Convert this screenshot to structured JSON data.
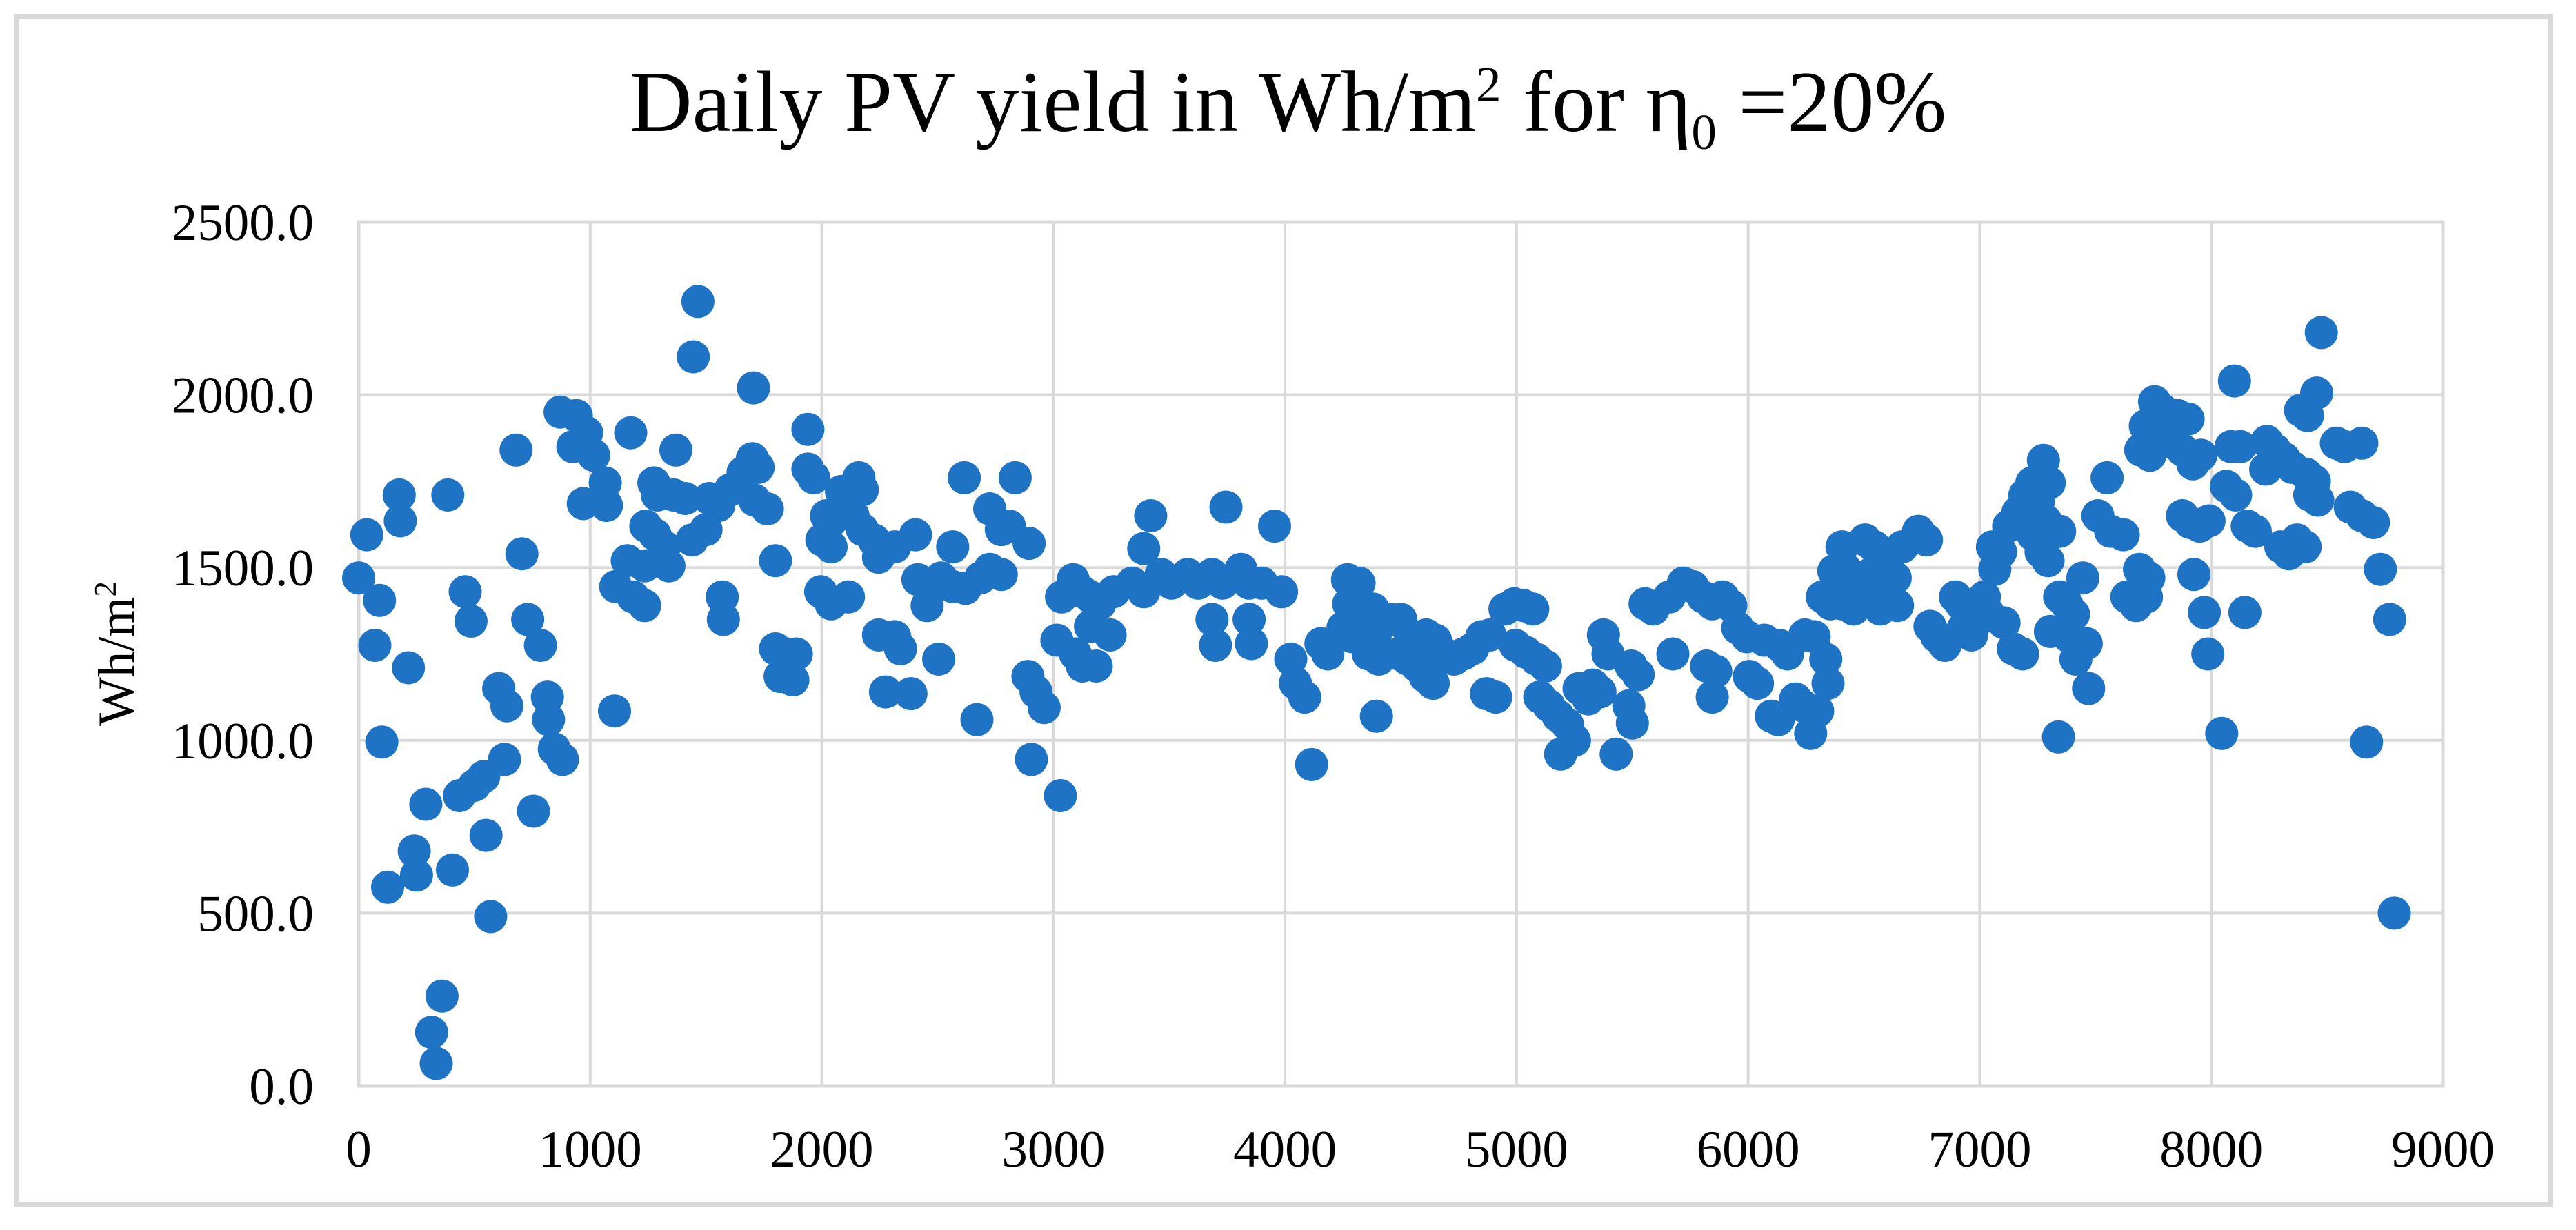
{
  "figure": {
    "background": "#ffffff",
    "frame_color": "#D9D9D9"
  },
  "title": {
    "prefix": "Daily PV yield in Wh/m",
    "sup": "2",
    "mid": " for η",
    "sub": "0",
    "suffix": " =20%"
  },
  "y_axis_title": {
    "text": "Wh/m",
    "sup": "2"
  },
  "chart_data": {
    "type": "scatter",
    "title": "Daily PV yield in Wh/m² for η₀ =20%",
    "xlabel": "",
    "ylabel": "Wh/m²",
    "xlim": [
      0,
      9000
    ],
    "ylim": [
      0,
      2500
    ],
    "grid": true,
    "legend": "none",
    "grid_color": "#D9D9D9",
    "marker_color": "#1F73C4",
    "x_ticks": [
      0,
      1000,
      2000,
      3000,
      4000,
      5000,
      6000,
      7000,
      8000,
      9000
    ],
    "x_tick_labels": [
      "0",
      "1000",
      "2000",
      "3000",
      "4000",
      "5000",
      "6000",
      "7000",
      "8000",
      "9000"
    ],
    "y_ticks": [
      0,
      500,
      1000,
      1500,
      2000,
      2500
    ],
    "y_tick_labels": [
      "0.0",
      "500.0",
      "1000.0",
      "1500.0",
      "2000.0",
      "2500.0"
    ],
    "points": [
      [
        0,
        1470
      ],
      [
        35,
        1595
      ],
      [
        70,
        1275
      ],
      [
        90,
        1405
      ],
      [
        100,
        995
      ],
      [
        125,
        575
      ],
      [
        175,
        1710
      ],
      [
        180,
        1635
      ],
      [
        215,
        1210
      ],
      [
        240,
        680
      ],
      [
        250,
        610
      ],
      [
        290,
        815
      ],
      [
        315,
        155
      ],
      [
        335,
        65
      ],
      [
        360,
        260
      ],
      [
        385,
        1710
      ],
      [
        405,
        625
      ],
      [
        435,
        840
      ],
      [
        460,
        1430
      ],
      [
        485,
        1345
      ],
      [
        500,
        870
      ],
      [
        540,
        895
      ],
      [
        550,
        725
      ],
      [
        570,
        490
      ],
      [
        605,
        1150
      ],
      [
        630,
        945
      ],
      [
        640,
        1100
      ],
      [
        680,
        1840
      ],
      [
        705,
        1540
      ],
      [
        730,
        1350
      ],
      [
        755,
        795
      ],
      [
        785,
        1275
      ],
      [
        815,
        1125
      ],
      [
        820,
        1060
      ],
      [
        845,
        975
      ],
      [
        870,
        1950
      ],
      [
        880,
        945
      ],
      [
        925,
        1850
      ],
      [
        940,
        1940
      ],
      [
        970,
        1685
      ],
      [
        985,
        1890
      ],
      [
        1015,
        1825
      ],
      [
        1065,
        1745
      ],
      [
        1070,
        1680
      ],
      [
        1105,
        1085
      ],
      [
        1110,
        1445
      ],
      [
        1160,
        1520
      ],
      [
        1175,
        1890
      ],
      [
        1185,
        1415
      ],
      [
        1235,
        1505
      ],
      [
        1235,
        1390
      ],
      [
        1240,
        1620
      ],
      [
        1275,
        1745
      ],
      [
        1280,
        1595
      ],
      [
        1290,
        1710
      ],
      [
        1320,
        1560
      ],
      [
        1340,
        1505
      ],
      [
        1360,
        1710
      ],
      [
        1370,
        1840
      ],
      [
        1410,
        1700
      ],
      [
        1440,
        1580
      ],
      [
        1445,
        2110
      ],
      [
        1465,
        2270
      ],
      [
        1500,
        1610
      ],
      [
        1515,
        1700
      ],
      [
        1555,
        1680
      ],
      [
        1570,
        1415
      ],
      [
        1575,
        1350
      ],
      [
        1605,
        1725
      ],
      [
        1660,
        1775
      ],
      [
        1700,
        1815
      ],
      [
        1705,
        2020
      ],
      [
        1710,
        1695
      ],
      [
        1725,
        1790
      ],
      [
        1765,
        1670
      ],
      [
        1800,
        1520
      ],
      [
        1800,
        1265
      ],
      [
        1820,
        1185
      ],
      [
        1850,
        1250
      ],
      [
        1875,
        1175
      ],
      [
        1890,
        1250
      ],
      [
        1940,
        1900
      ],
      [
        1940,
        1785
      ],
      [
        1965,
        1760
      ],
      [
        1995,
        1430
      ],
      [
        2000,
        1580
      ],
      [
        2020,
        1650
      ],
      [
        2040,
        1635
      ],
      [
        2040,
        1560
      ],
      [
        2040,
        1395
      ],
      [
        2085,
        1720
      ],
      [
        2115,
        1415
      ],
      [
        2135,
        1650
      ],
      [
        2160,
        1760
      ],
      [
        2175,
        1725
      ],
      [
        2175,
        1610
      ],
      [
        2225,
        1580
      ],
      [
        2245,
        1530
      ],
      [
        2245,
        1305
      ],
      [
        2275,
        1140
      ],
      [
        2315,
        1560
      ],
      [
        2315,
        1300
      ],
      [
        2340,
        1265
      ],
      [
        2385,
        1135
      ],
      [
        2405,
        1595
      ],
      [
        2415,
        1465
      ],
      [
        2455,
        1390
      ],
      [
        2505,
        1235
      ],
      [
        2515,
        1470
      ],
      [
        2565,
        1560
      ],
      [
        2565,
        1445
      ],
      [
        2615,
        1760
      ],
      [
        2620,
        1440
      ],
      [
        2670,
        1060
      ],
      [
        2685,
        1470
      ],
      [
        2725,
        1670
      ],
      [
        2725,
        1495
      ],
      [
        2775,
        1610
      ],
      [
        2775,
        1480
      ],
      [
        2810,
        1620
      ],
      [
        2835,
        1760
      ],
      [
        2890,
        1185
      ],
      [
        2895,
        1570
      ],
      [
        2905,
        945
      ],
      [
        2925,
        1140
      ],
      [
        2960,
        1095
      ],
      [
        3015,
        1290
      ],
      [
        3030,
        840
      ],
      [
        3035,
        1415
      ],
      [
        3085,
        1465
      ],
      [
        3095,
        1250
      ],
      [
        3125,
        1430
      ],
      [
        3125,
        1215
      ],
      [
        3160,
        1415
      ],
      [
        3160,
        1330
      ],
      [
        3185,
        1215
      ],
      [
        3200,
        1395
      ],
      [
        3245,
        1305
      ],
      [
        3260,
        1430
      ],
      [
        3340,
        1455
      ],
      [
        3390,
        1555
      ],
      [
        3390,
        1430
      ],
      [
        3420,
        1650
      ],
      [
        3465,
        1480
      ],
      [
        3510,
        1455
      ],
      [
        3580,
        1480
      ],
      [
        3625,
        1455
      ],
      [
        3685,
        1480
      ],
      [
        3685,
        1350
      ],
      [
        3700,
        1275
      ],
      [
        3730,
        1455
      ],
      [
        3745,
        1675
      ],
      [
        3810,
        1495
      ],
      [
        3845,
        1455
      ],
      [
        3845,
        1350
      ],
      [
        3855,
        1280
      ],
      [
        3900,
        1455
      ],
      [
        3955,
        1620
      ],
      [
        3985,
        1430
      ],
      [
        4025,
        1235
      ],
      [
        4045,
        1165
      ],
      [
        4085,
        1125
      ],
      [
        4115,
        930
      ],
      [
        4155,
        1280
      ],
      [
        4185,
        1250
      ],
      [
        4250,
        1325
      ],
      [
        4270,
        1465
      ],
      [
        4275,
        1395
      ],
      [
        4290,
        1300
      ],
      [
        4320,
        1455
      ],
      [
        4340,
        1365
      ],
      [
        4360,
        1250
      ],
      [
        4380,
        1380
      ],
      [
        4390,
        1305
      ],
      [
        4395,
        1070
      ],
      [
        4405,
        1235
      ],
      [
        4460,
        1350
      ],
      [
        4490,
        1250
      ],
      [
        4500,
        1350
      ],
      [
        4530,
        1235
      ],
      [
        4540,
        1305
      ],
      [
        4570,
        1215
      ],
      [
        4605,
        1185
      ],
      [
        4610,
        1305
      ],
      [
        4640,
        1165
      ],
      [
        4650,
        1290
      ],
      [
        4690,
        1250
      ],
      [
        4730,
        1235
      ],
      [
        4770,
        1250
      ],
      [
        4810,
        1265
      ],
      [
        4850,
        1300
      ],
      [
        4870,
        1135
      ],
      [
        4885,
        1305
      ],
      [
        4910,
        1125
      ],
      [
        4950,
        1380
      ],
      [
        4990,
        1395
      ],
      [
        4995,
        1275
      ],
      [
        5030,
        1390
      ],
      [
        5040,
        1255
      ],
      [
        5070,
        1380
      ],
      [
        5085,
        1235
      ],
      [
        5100,
        1125
      ],
      [
        5125,
        1215
      ],
      [
        5140,
        1100
      ],
      [
        5180,
        1070
      ],
      [
        5190,
        960
      ],
      [
        5220,
        1045
      ],
      [
        5250,
        1000
      ],
      [
        5270,
        1150
      ],
      [
        5310,
        1120
      ],
      [
        5330,
        1160
      ],
      [
        5360,
        1140
      ],
      [
        5375,
        1305
      ],
      [
        5395,
        1250
      ],
      [
        5430,
        960
      ],
      [
        5485,
        1100
      ],
      [
        5495,
        1215
      ],
      [
        5500,
        1050
      ],
      [
        5525,
        1190
      ],
      [
        5555,
        1395
      ],
      [
        5590,
        1380
      ],
      [
        5660,
        1415
      ],
      [
        5675,
        1250
      ],
      [
        5720,
        1455
      ],
      [
        5760,
        1445
      ],
      [
        5805,
        1415
      ],
      [
        5820,
        1215
      ],
      [
        5845,
        1395
      ],
      [
        5845,
        1125
      ],
      [
        5860,
        1200
      ],
      [
        5890,
        1415
      ],
      [
        5925,
        1390
      ],
      [
        5955,
        1325
      ],
      [
        5995,
        1300
      ],
      [
        6005,
        1185
      ],
      [
        6040,
        1165
      ],
      [
        6070,
        1290
      ],
      [
        6100,
        1070
      ],
      [
        6130,
        1060
      ],
      [
        6135,
        1275
      ],
      [
        6170,
        1250
      ],
      [
        6205,
        1120
      ],
      [
        6235,
        1100
      ],
      [
        6245,
        1305
      ],
      [
        6270,
        1020
      ],
      [
        6285,
        1300
      ],
      [
        6300,
        1085
      ],
      [
        6320,
        1415
      ],
      [
        6335,
        1235
      ],
      [
        6345,
        1165
      ],
      [
        6355,
        1395
      ],
      [
        6370,
        1490
      ],
      [
        6395,
        1440
      ],
      [
        6405,
        1560
      ],
      [
        6405,
        1395
      ],
      [
        6420,
        1495
      ],
      [
        6435,
        1430
      ],
      [
        6455,
        1380
      ],
      [
        6475,
        1455
      ],
      [
        6505,
        1580
      ],
      [
        6525,
        1480
      ],
      [
        6530,
        1405
      ],
      [
        6545,
        1560
      ],
      [
        6565,
        1455
      ],
      [
        6570,
        1380
      ],
      [
        6605,
        1495
      ],
      [
        6610,
        1415
      ],
      [
        6635,
        1470
      ],
      [
        6645,
        1390
      ],
      [
        6665,
        1560
      ],
      [
        6735,
        1605
      ],
      [
        6770,
        1580
      ],
      [
        6785,
        1330
      ],
      [
        6815,
        1300
      ],
      [
        6850,
        1275
      ],
      [
        6895,
        1415
      ],
      [
        6920,
        1395
      ],
      [
        6930,
        1325
      ],
      [
        6965,
        1305
      ],
      [
        6995,
        1350
      ],
      [
        7020,
        1415
      ],
      [
        7035,
        1370
      ],
      [
        7055,
        1560
      ],
      [
        7065,
        1495
      ],
      [
        7090,
        1545
      ],
      [
        7105,
        1340
      ],
      [
        7125,
        1620
      ],
      [
        7145,
        1265
      ],
      [
        7165,
        1660
      ],
      [
        7185,
        1250
      ],
      [
        7195,
        1710
      ],
      [
        7225,
        1745
      ],
      [
        7230,
        1595
      ],
      [
        7255,
        1695
      ],
      [
        7265,
        1545
      ],
      [
        7275,
        1810
      ],
      [
        7285,
        1635
      ],
      [
        7295,
        1520
      ],
      [
        7300,
        1745
      ],
      [
        7305,
        1315
      ],
      [
        7340,
        1010
      ],
      [
        7345,
        1605
      ],
      [
        7345,
        1415
      ],
      [
        7375,
        1395
      ],
      [
        7405,
        1365
      ],
      [
        7385,
        1300
      ],
      [
        7415,
        1235
      ],
      [
        7445,
        1470
      ],
      [
        7460,
        1280
      ],
      [
        7470,
        1150
      ],
      [
        7510,
        1650
      ],
      [
        7550,
        1760
      ],
      [
        7565,
        1605
      ],
      [
        7620,
        1595
      ],
      [
        7635,
        1415
      ],
      [
        7675,
        1390
      ],
      [
        7690,
        1495
      ],
      [
        7695,
        1840
      ],
      [
        7715,
        1910
      ],
      [
        7720,
        1415
      ],
      [
        7730,
        1470
      ],
      [
        7735,
        1825
      ],
      [
        7755,
        1980
      ],
      [
        7775,
        1890
      ],
      [
        7790,
        1955
      ],
      [
        7820,
        1865
      ],
      [
        7855,
        1940
      ],
      [
        7875,
        1840
      ],
      [
        7875,
        1650
      ],
      [
        7900,
        1930
      ],
      [
        7910,
        1630
      ],
      [
        7920,
        1800
      ],
      [
        7925,
        1480
      ],
      [
        7950,
        1620
      ],
      [
        7955,
        1825
      ],
      [
        7970,
        1370
      ],
      [
        7985,
        1250
      ],
      [
        7990,
        1635
      ],
      [
        8045,
        1020
      ],
      [
        8065,
        1735
      ],
      [
        8085,
        1850
      ],
      [
        8100,
        2040
      ],
      [
        8105,
        1710
      ],
      [
        8125,
        1850
      ],
      [
        8145,
        1370
      ],
      [
        8155,
        1620
      ],
      [
        8190,
        1605
      ],
      [
        8235,
        1785
      ],
      [
        8240,
        1865
      ],
      [
        8275,
        1840
      ],
      [
        8300,
        1560
      ],
      [
        8315,
        1815
      ],
      [
        8335,
        1540
      ],
      [
        8350,
        1790
      ],
      [
        8380,
        1570
      ],
      [
        8385,
        1955
      ],
      [
        8410,
        1770
      ],
      [
        8415,
        1940
      ],
      [
        8445,
        1750
      ],
      [
        8455,
        2005
      ],
      [
        8475,
        2180
      ],
      [
        8370,
        1580
      ],
      [
        8405,
        1560
      ],
      [
        8425,
        1710
      ],
      [
        8460,
        1695
      ],
      [
        8540,
        1860
      ],
      [
        8575,
        1850
      ],
      [
        8600,
        1675
      ],
      [
        8650,
        1860
      ],
      [
        8650,
        1650
      ],
      [
        8670,
        995
      ],
      [
        8700,
        1630
      ],
      [
        8730,
        1495
      ],
      [
        8770,
        1350
      ],
      [
        8790,
        500
      ]
    ]
  }
}
